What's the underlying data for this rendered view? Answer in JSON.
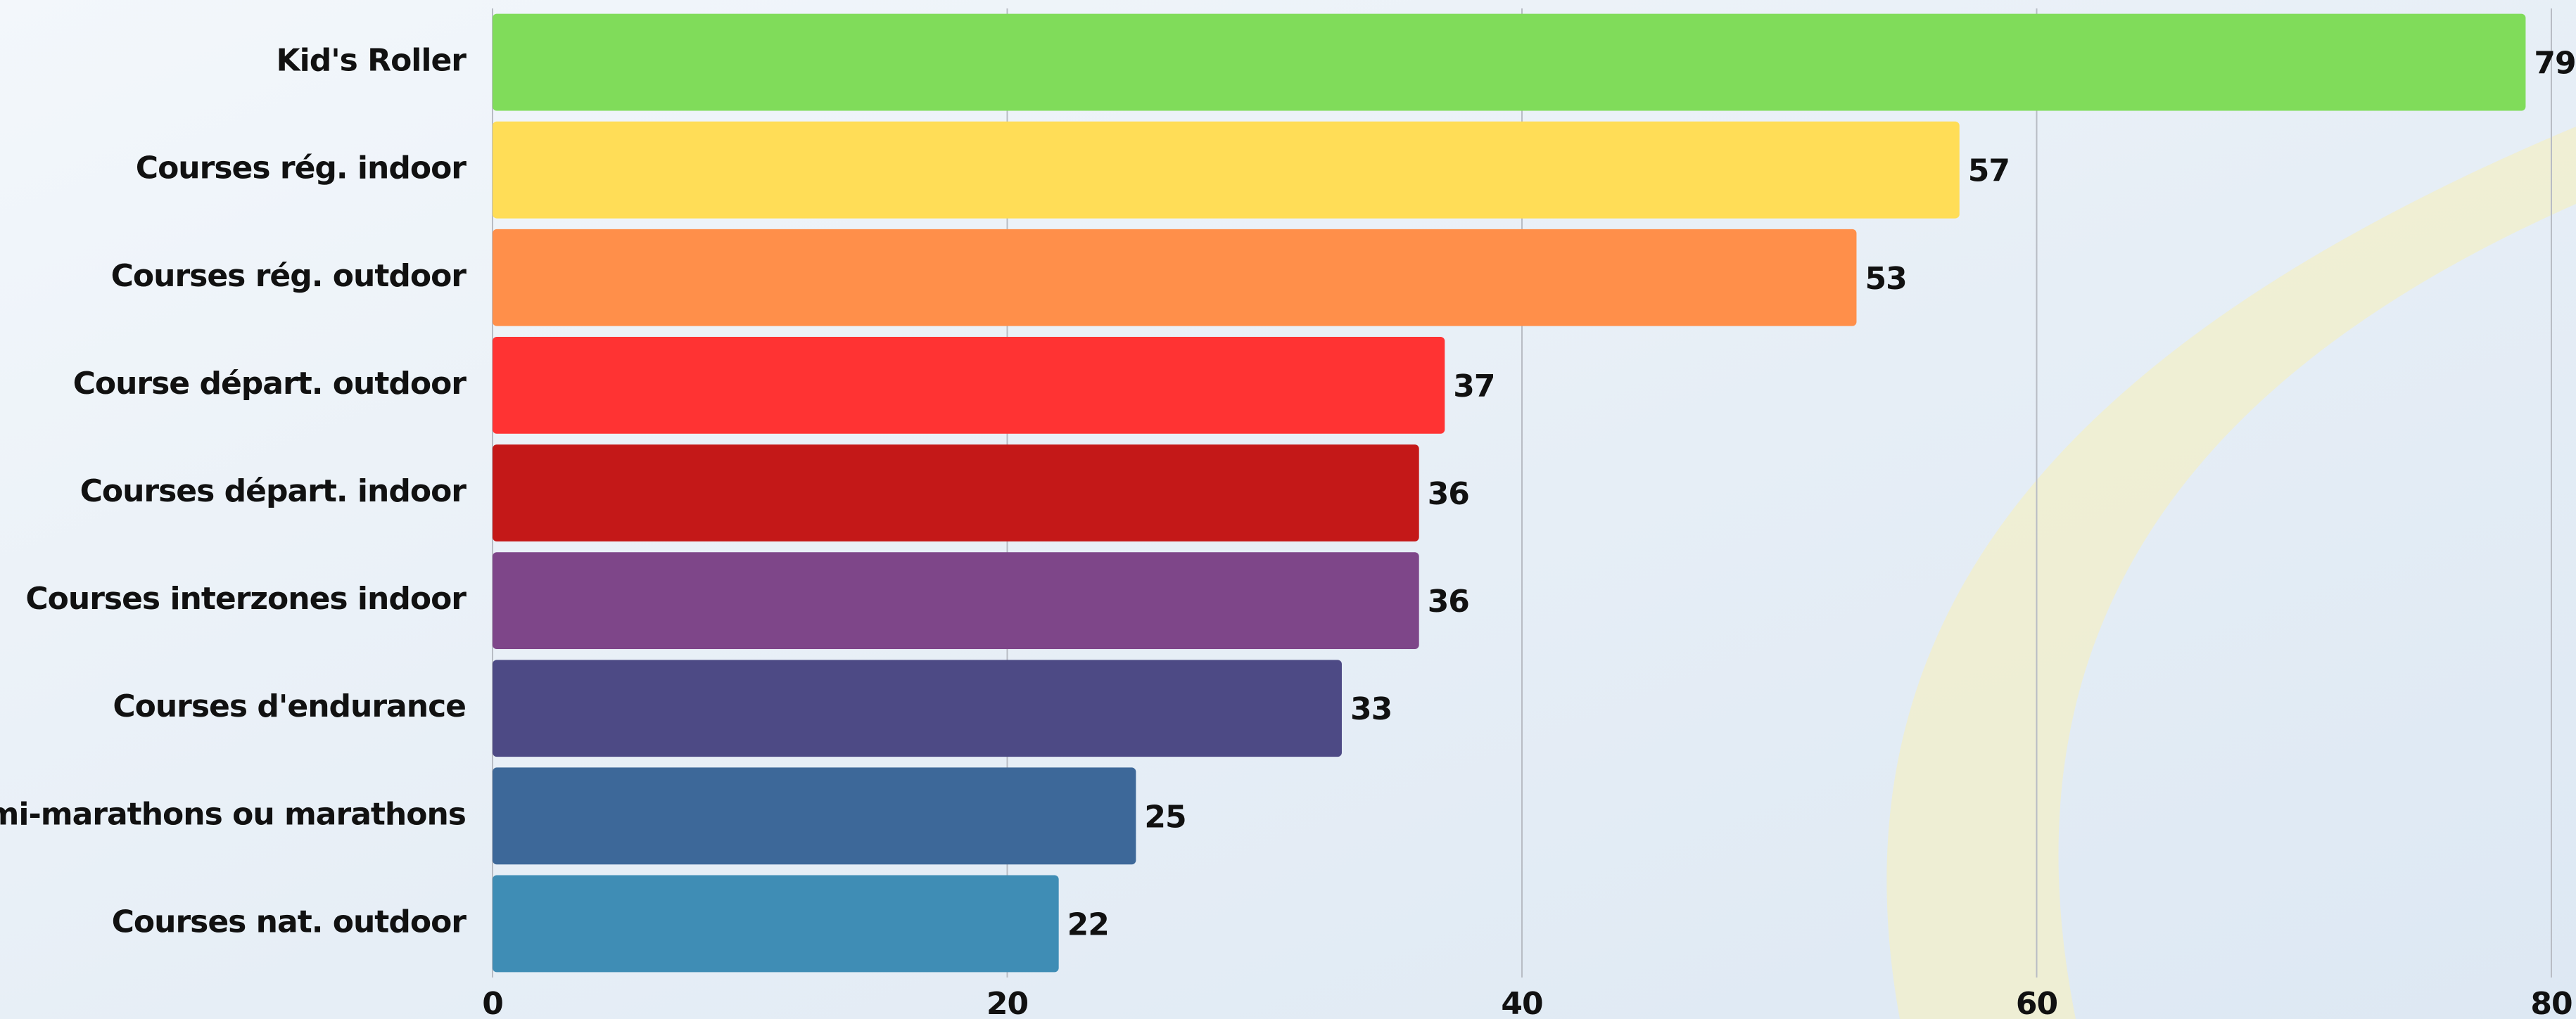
{
  "chart_data": {
    "type": "bar",
    "orientation": "horizontal",
    "categories": [
      "Kid's Roller",
      "Courses rég. indoor",
      "Courses rég. outdoor",
      "Course départ. outdoor",
      "Courses départ. indoor",
      "Courses interzones indoor",
      "Courses d'endurance",
      "Semi-marathons ou marathons",
      "Courses nat. outdoor"
    ],
    "values": [
      79,
      57,
      53,
      37,
      36,
      36,
      33,
      25,
      22
    ],
    "colors": [
      "#80dc5a",
      "#ffdd57",
      "#ff8f4a",
      "#ff3333",
      "#c41818",
      "#7e4689",
      "#4d4a85",
      "#3d6899",
      "#3f8db5"
    ],
    "xlim": [
      0,
      80
    ],
    "xticks": [
      0,
      20,
      40,
      60,
      80
    ],
    "grid": true
  }
}
